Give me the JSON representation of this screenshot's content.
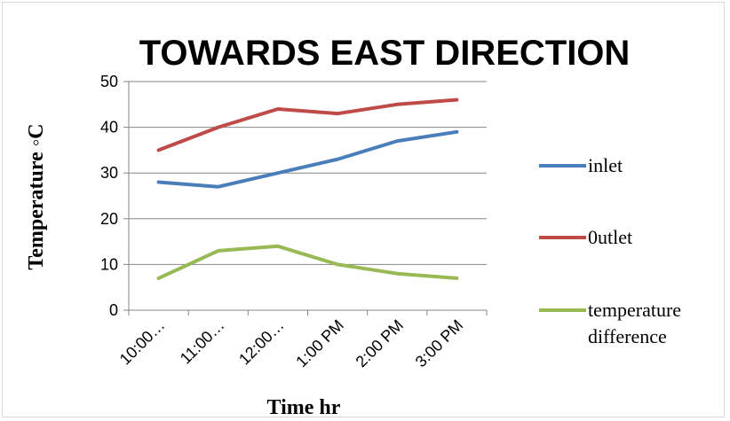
{
  "chart_data": {
    "type": "line",
    "title": "TOWARDS EAST DIRECTION",
    "xlabel": "Time  hr",
    "ylabel": "Temperature  ◦C",
    "categories": [
      "10:00…",
      "11:00…",
      "12:00…",
      "1:00 PM",
      "2:00 PM",
      "3:00 PM"
    ],
    "ylim": [
      0,
      50
    ],
    "yticks": [
      0,
      10,
      20,
      30,
      40,
      50
    ],
    "grid": true,
    "legend_position": "right",
    "series": [
      {
        "name": "inlet",
        "color": "#4a7ebb",
        "values": [
          28,
          27,
          30,
          33,
          37,
          39
        ]
      },
      {
        "name": "0utlet",
        "color": "#be4b48",
        "values": [
          35,
          40,
          44,
          43,
          45,
          46
        ]
      },
      {
        "name": "temperature difference",
        "legend_lines": [
          "temperature",
          "difference"
        ],
        "color": "#98b954",
        "values": [
          7,
          13,
          14,
          10,
          8,
          7
        ]
      }
    ]
  }
}
